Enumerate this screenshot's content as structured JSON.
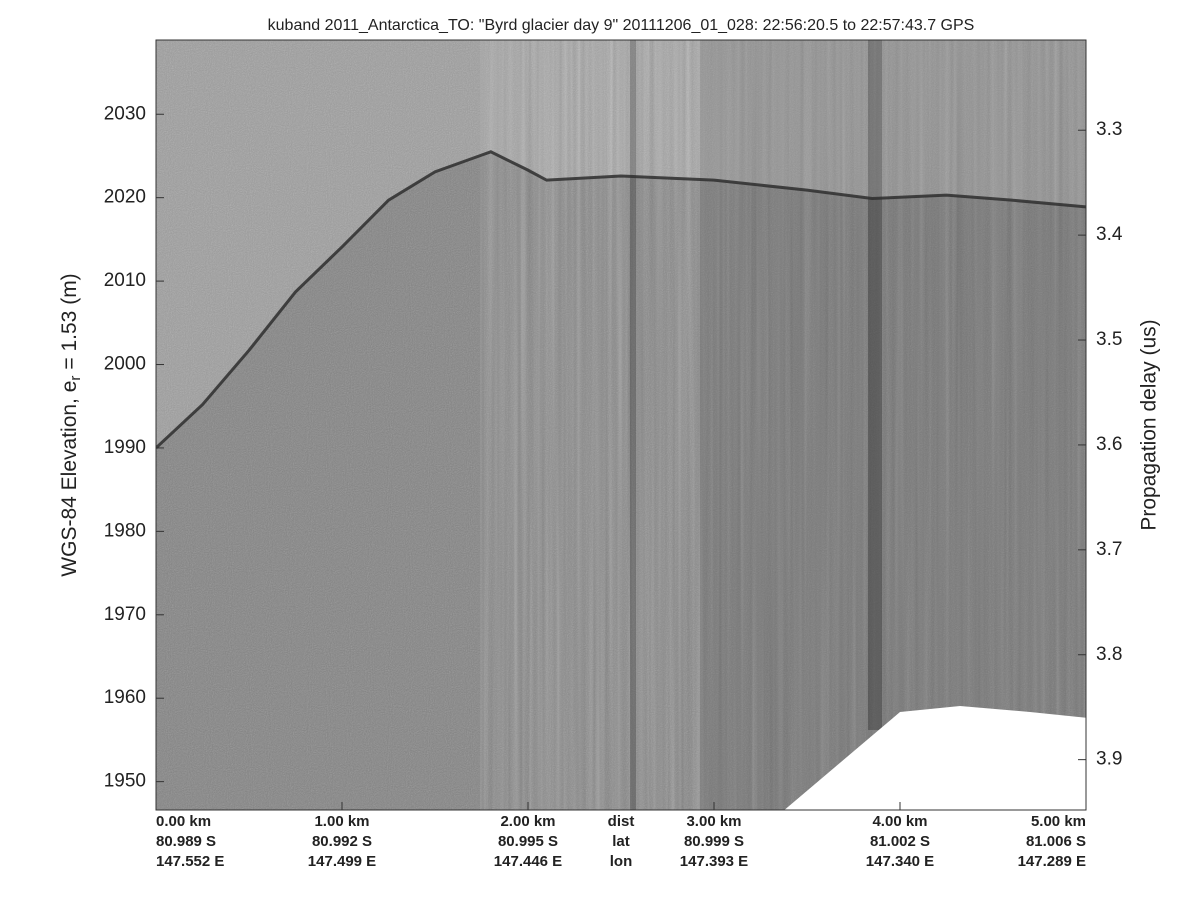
{
  "chart_data": {
    "type": "echogram",
    "title": "kuband 2011_Antarctica_TO: \"Byrd glacier day 9\"  20111206_01_028: 22:56:20.5 to 22:57:43.7 GPS",
    "ylabel": {
      "text": "WGS-84 Elevation, e",
      "subscript": "r",
      "rest": "= 1.53 (m)"
    },
    "y2label": "Propagation delay (us)",
    "xlim": [
      0,
      5
    ],
    "xticks": [
      {
        "value": 0,
        "label": "0.00 km"
      },
      {
        "value": 1,
        "label": "1.00 km"
      },
      {
        "value": 2,
        "label": "2.00 km"
      },
      {
        "value": 3,
        "label": "3.00 km"
      },
      {
        "value": 4,
        "label": "4.00 km"
      },
      {
        "value": 5,
        "label": "5.00 km"
      }
    ],
    "xtick_lat": [
      "80.989 S",
      "80.992 S",
      "80.995 S",
      "80.999 S",
      "81.002 S",
      "81.006 S"
    ],
    "xtick_lon": [
      "147.552 E",
      "147.499 E",
      "147.446 E",
      "147.393 E",
      "147.340 E",
      "147.289 E"
    ],
    "row_labels": [
      "dist",
      "lat",
      "lon"
    ],
    "ylim": [
      1946.6,
      2038.9
    ],
    "yticks": [
      1950,
      1960,
      1970,
      1980,
      1990,
      2000,
      2010,
      2020,
      2030
    ],
    "y2lim": [
      3.948,
      3.214
    ],
    "y2ticks": [
      3.3,
      3.4,
      3.5,
      3.6,
      3.7,
      3.8,
      3.9
    ],
    "series": [
      {
        "color": "#2e2e2e",
        "x": [
          0,
          0.25,
          0.5,
          0.75,
          1.0,
          1.25,
          1.5,
          1.75,
          1.8,
          2.0,
          2.1,
          2.5,
          3.0,
          3.5,
          3.85,
          4.25,
          4.6,
          5.0
        ],
        "values": [
          1990,
          1995.2,
          2001.7,
          2008.7,
          2014.1,
          2019.7,
          2023.1,
          2025.1,
          2025.5,
          2023.3,
          2022.1,
          2022.6,
          2022.1,
          2020.9,
          2019.9,
          2020.3,
          2019.7,
          2018.9
        ]
      }
    ]
  }
}
